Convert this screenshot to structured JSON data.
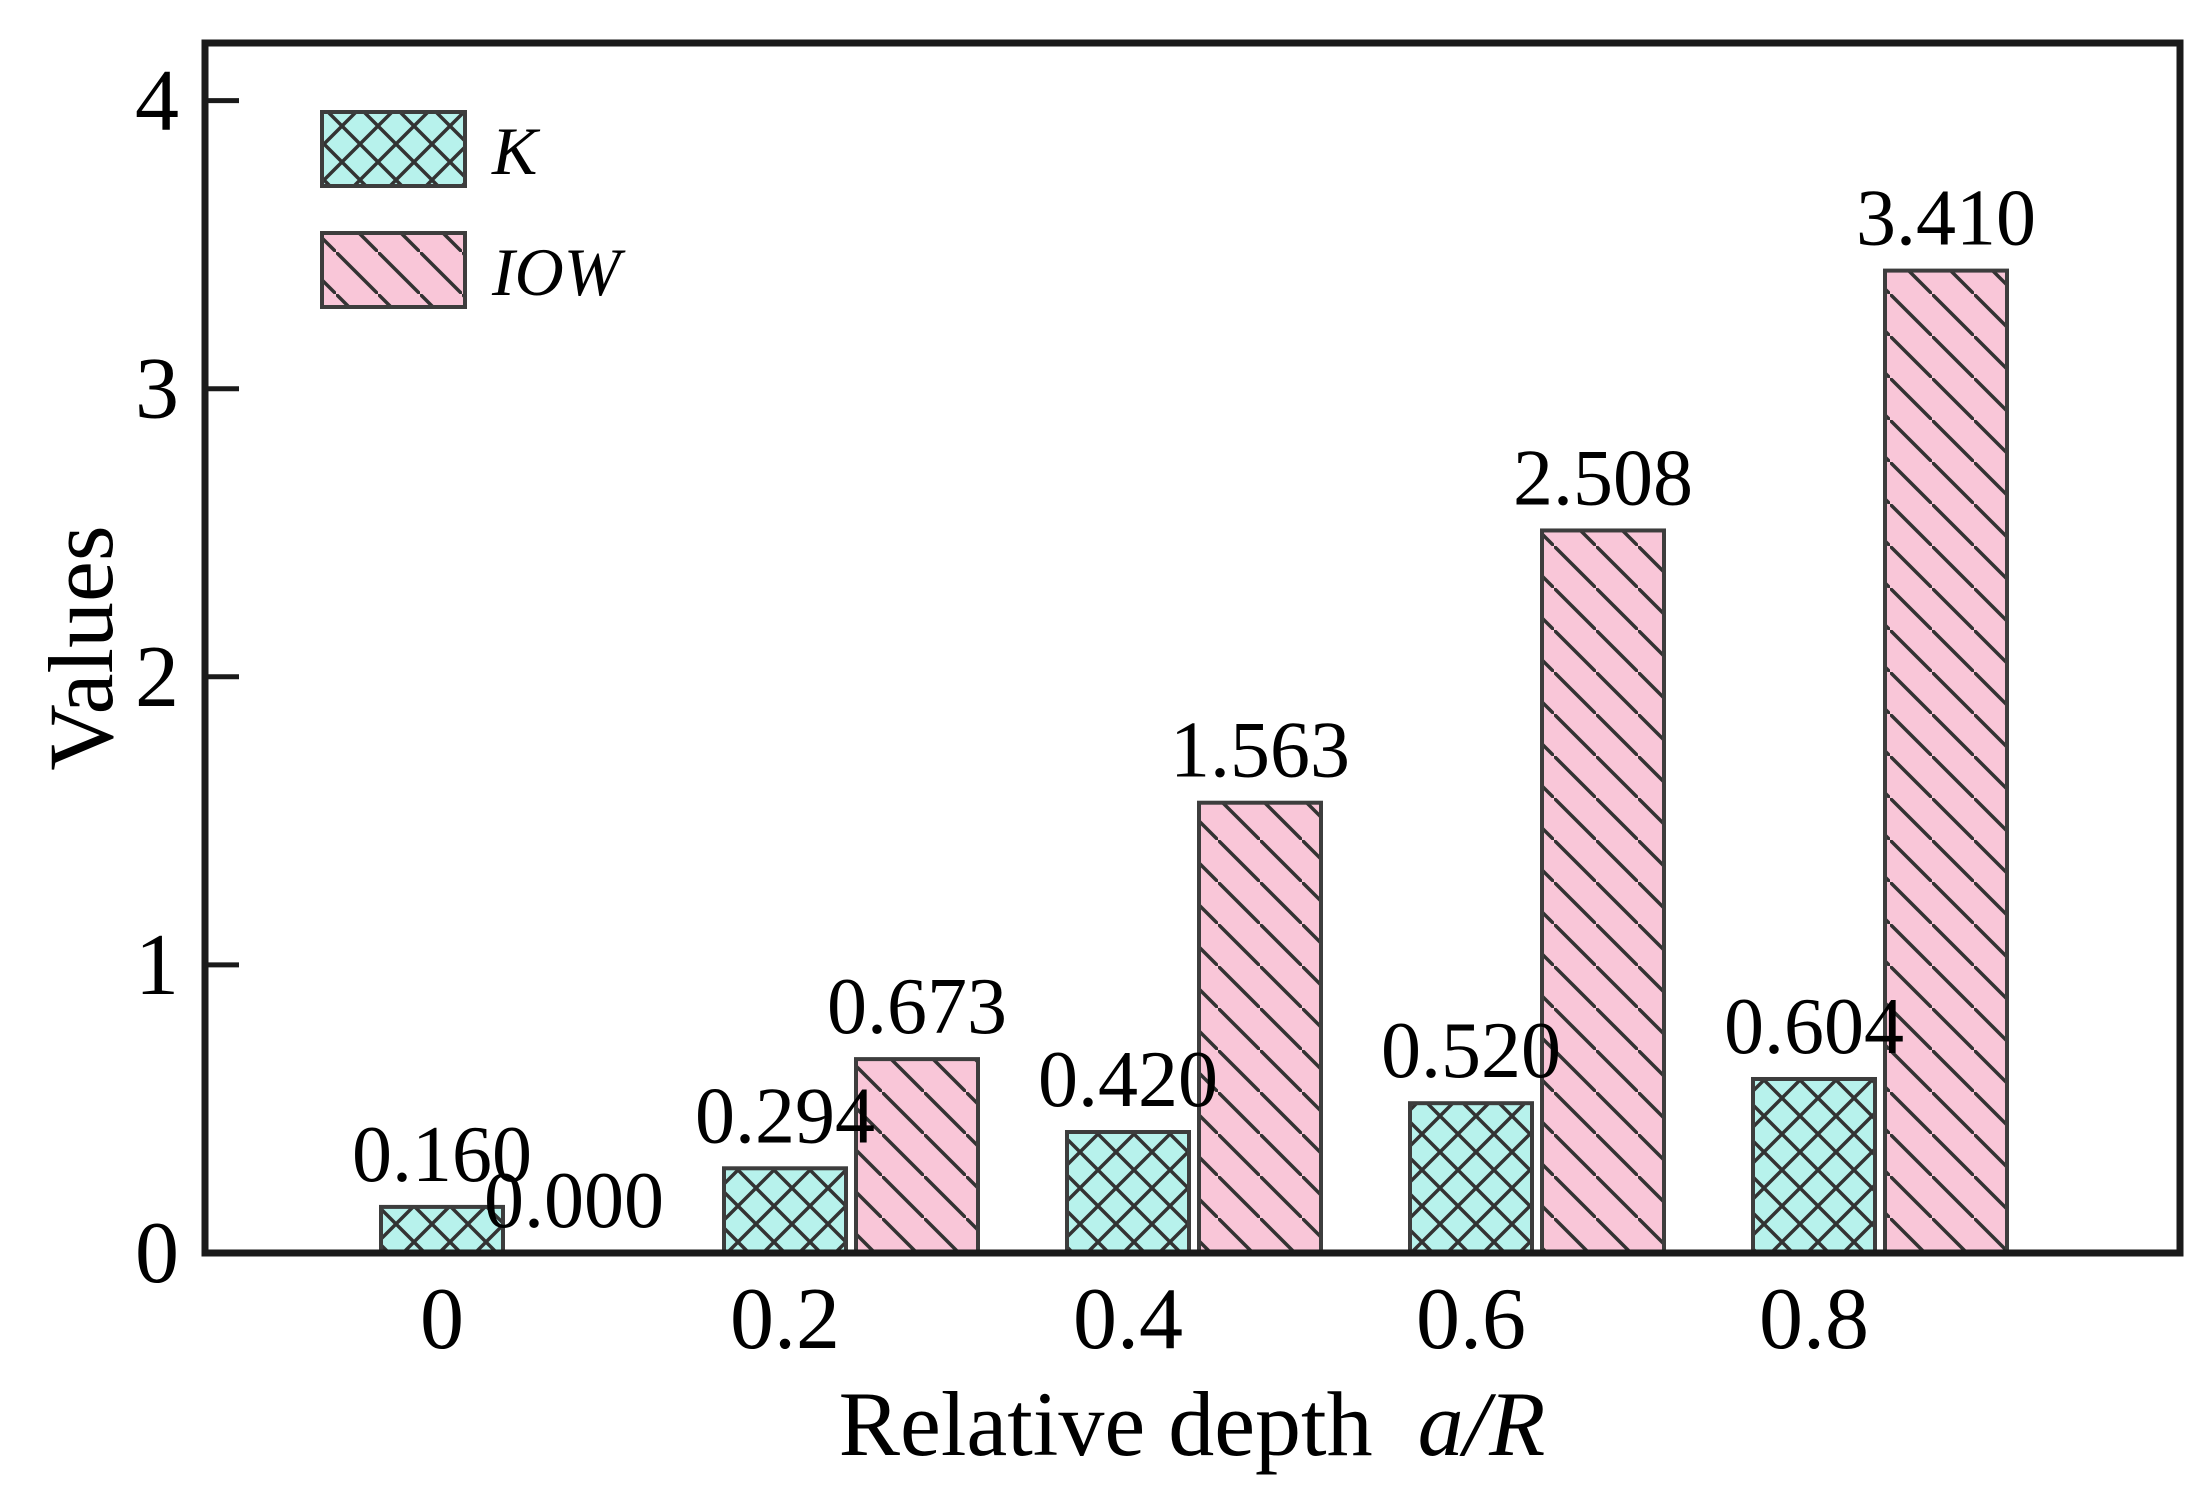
{
  "chart_data": {
    "type": "bar",
    "title": "",
    "xlabel": {
      "plain": "Relative depth",
      "italic": "a/R",
      "full": "Relative depth a/R"
    },
    "ylabel": "Values",
    "categories": [
      "0",
      "0.2",
      "0.4",
      "0.6",
      "0.8"
    ],
    "series": [
      {
        "name": "K",
        "values": [
          0.16,
          0.294,
          0.42,
          0.52,
          0.604
        ],
        "labels": [
          "0.160",
          "0.294",
          "0.420",
          "0.520",
          "0.604"
        ],
        "fill": "#B7F2EC",
        "hatch": "crosshatch-diagonal",
        "hatch_color": "#333333"
      },
      {
        "name": "IOW",
        "values": [
          0.0,
          0.673,
          1.563,
          2.508,
          3.41
        ],
        "labels": [
          "0.000",
          "0.673",
          "1.563",
          "2.508",
          "3.410"
        ],
        "fill": "#F9C6D8",
        "hatch": "diagonal-down",
        "hatch_color": "#333333"
      }
    ],
    "ylim": [
      0,
      4.2
    ],
    "yticks": [
      "0",
      "1",
      "2",
      "3",
      "4"
    ],
    "grid": false,
    "legend_position": "top-left",
    "axis_color": "#1a1a1a",
    "bar_border_color": "#3d3d3d"
  }
}
